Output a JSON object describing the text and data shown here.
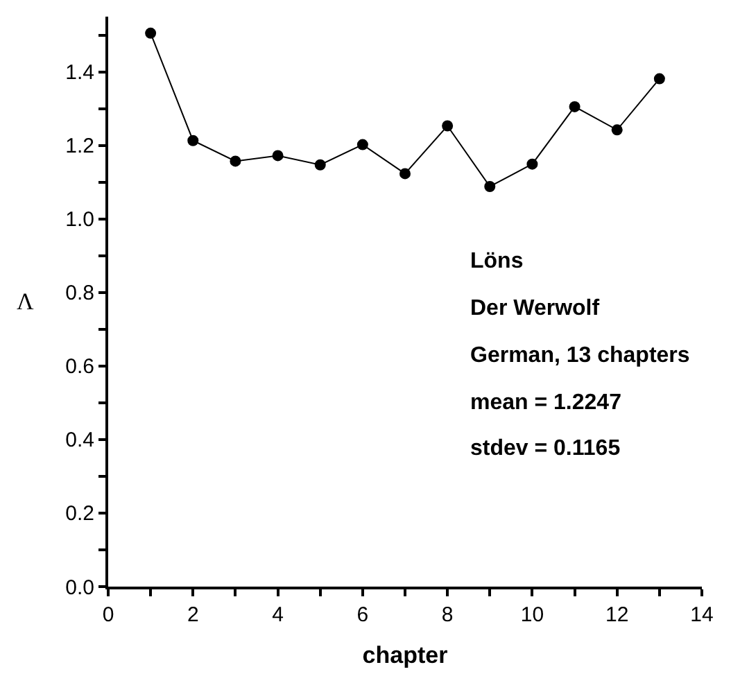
{
  "chart_data": {
    "type": "line",
    "xlabel": "chapter",
    "ylabel": "Λ",
    "x": [
      1,
      2,
      3,
      4,
      5,
      6,
      7,
      8,
      9,
      10,
      11,
      12,
      13
    ],
    "series": [
      {
        "color": "#000000",
        "values": [
          1.505,
          1.213,
          1.157,
          1.172,
          1.147,
          1.202,
          1.123,
          1.253,
          1.088,
          1.149,
          1.305,
          1.242,
          1.381
        ]
      }
    ],
    "marker": "circle",
    "line_style": "solid",
    "xlim": [
      0,
      14
    ],
    "ylim": [
      0,
      1.55
    ],
    "xticks": [
      0,
      {
        "value": 1,
        "label": null
      },
      2,
      {
        "value": 3,
        "label": null
      },
      4,
      {
        "value": 5,
        "label": null
      },
      6,
      {
        "value": 7,
        "label": null
      },
      8,
      {
        "value": 9,
        "label": null
      },
      10,
      {
        "value": 11,
        "label": null
      },
      12,
      {
        "value": 13,
        "label": null
      },
      14
    ],
    "yticks": [
      {
        "value": 0,
        "label": "0.0"
      },
      {
        "value": 0.1,
        "label": null
      },
      0.2,
      {
        "value": 0.3,
        "label": null
      },
      0.4,
      {
        "value": 0.5,
        "label": null
      },
      0.6,
      {
        "value": 0.7,
        "label": null
      },
      0.8,
      {
        "value": 0.9,
        "label": null
      },
      {
        "value": 1.0,
        "label": "1.0"
      },
      {
        "value": 1.1,
        "label": null
      },
      1.2,
      {
        "value": 1.3,
        "label": null
      },
      1.4,
      {
        "value": 1.5,
        "label": null
      }
    ],
    "annotations": [
      "Löns",
      "Der Werwolf",
      "German, 13 chapters",
      "mean = 1.2247",
      "stdev = 0.1165"
    ]
  }
}
